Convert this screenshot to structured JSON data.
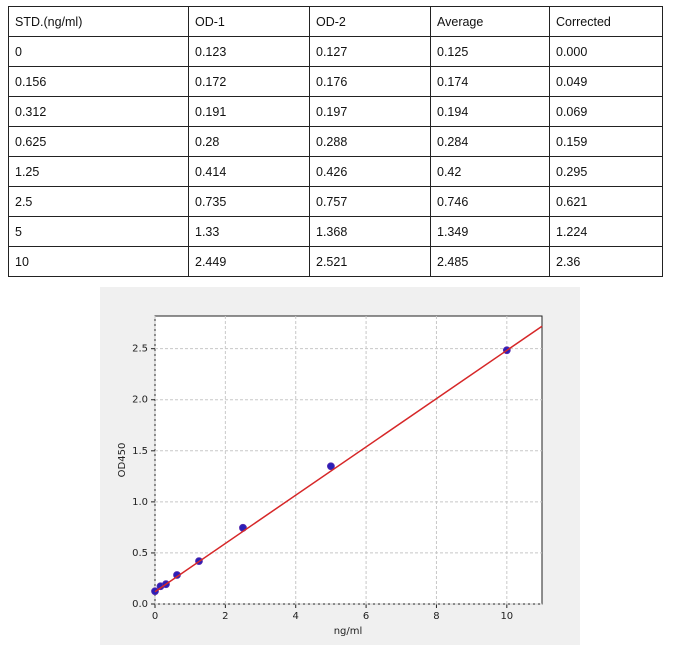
{
  "table": {
    "header": [
      "STD.(ng/ml)",
      "OD-1",
      "OD-2",
      "Average",
      "Corrected"
    ],
    "rows": [
      [
        "0",
        "0.123",
        "0.127",
        "0.125",
        "0.000"
      ],
      [
        "0.156",
        "0.172",
        "0.176",
        "0.174",
        "0.049"
      ],
      [
        "0.312",
        "0.191",
        "0.197",
        "0.194",
        "0.069"
      ],
      [
        "0.625",
        "0.28",
        "0.288",
        "0.284",
        "0.159"
      ],
      [
        "1.25",
        "0.414",
        "0.426",
        "0.42",
        "0.295"
      ],
      [
        "2.5",
        "0.735",
        "0.757",
        "0.746",
        "0.621"
      ],
      [
        "5",
        "1.33",
        "1.368",
        "1.349",
        "1.224"
      ],
      [
        "10",
        "2.449",
        "2.521",
        "2.485",
        "2.36"
      ]
    ]
  },
  "chart_data": {
    "type": "scatter",
    "x_label": "ng/ml",
    "y_label": "OD450",
    "xlim": [
      0,
      11
    ],
    "ylim": [
      0,
      2.82
    ],
    "xticks": [
      0,
      2,
      4,
      6,
      8,
      10
    ],
    "yticks": [
      {
        "value": 0,
        "label": "0.0"
      },
      0.5,
      {
        "value": 1,
        "label": "1.0"
      },
      1.5,
      {
        "value": 2,
        "label": "2.0"
      },
      2.5
    ],
    "grid": true,
    "series": [
      {
        "x": [
          0,
          0.156,
          0.312,
          0.625,
          1.25,
          2.5,
          5,
          10
        ],
        "values": [
          0.125,
          0.174,
          0.194,
          0.284,
          0.42,
          0.746,
          1.349,
          2.485
        ],
        "color": "#2a1fb8",
        "style": "points"
      },
      {
        "x": [
          0,
          11
        ],
        "values": [
          0.12,
          2.72
        ],
        "color": "#d62728",
        "style": "line"
      }
    ]
  }
}
